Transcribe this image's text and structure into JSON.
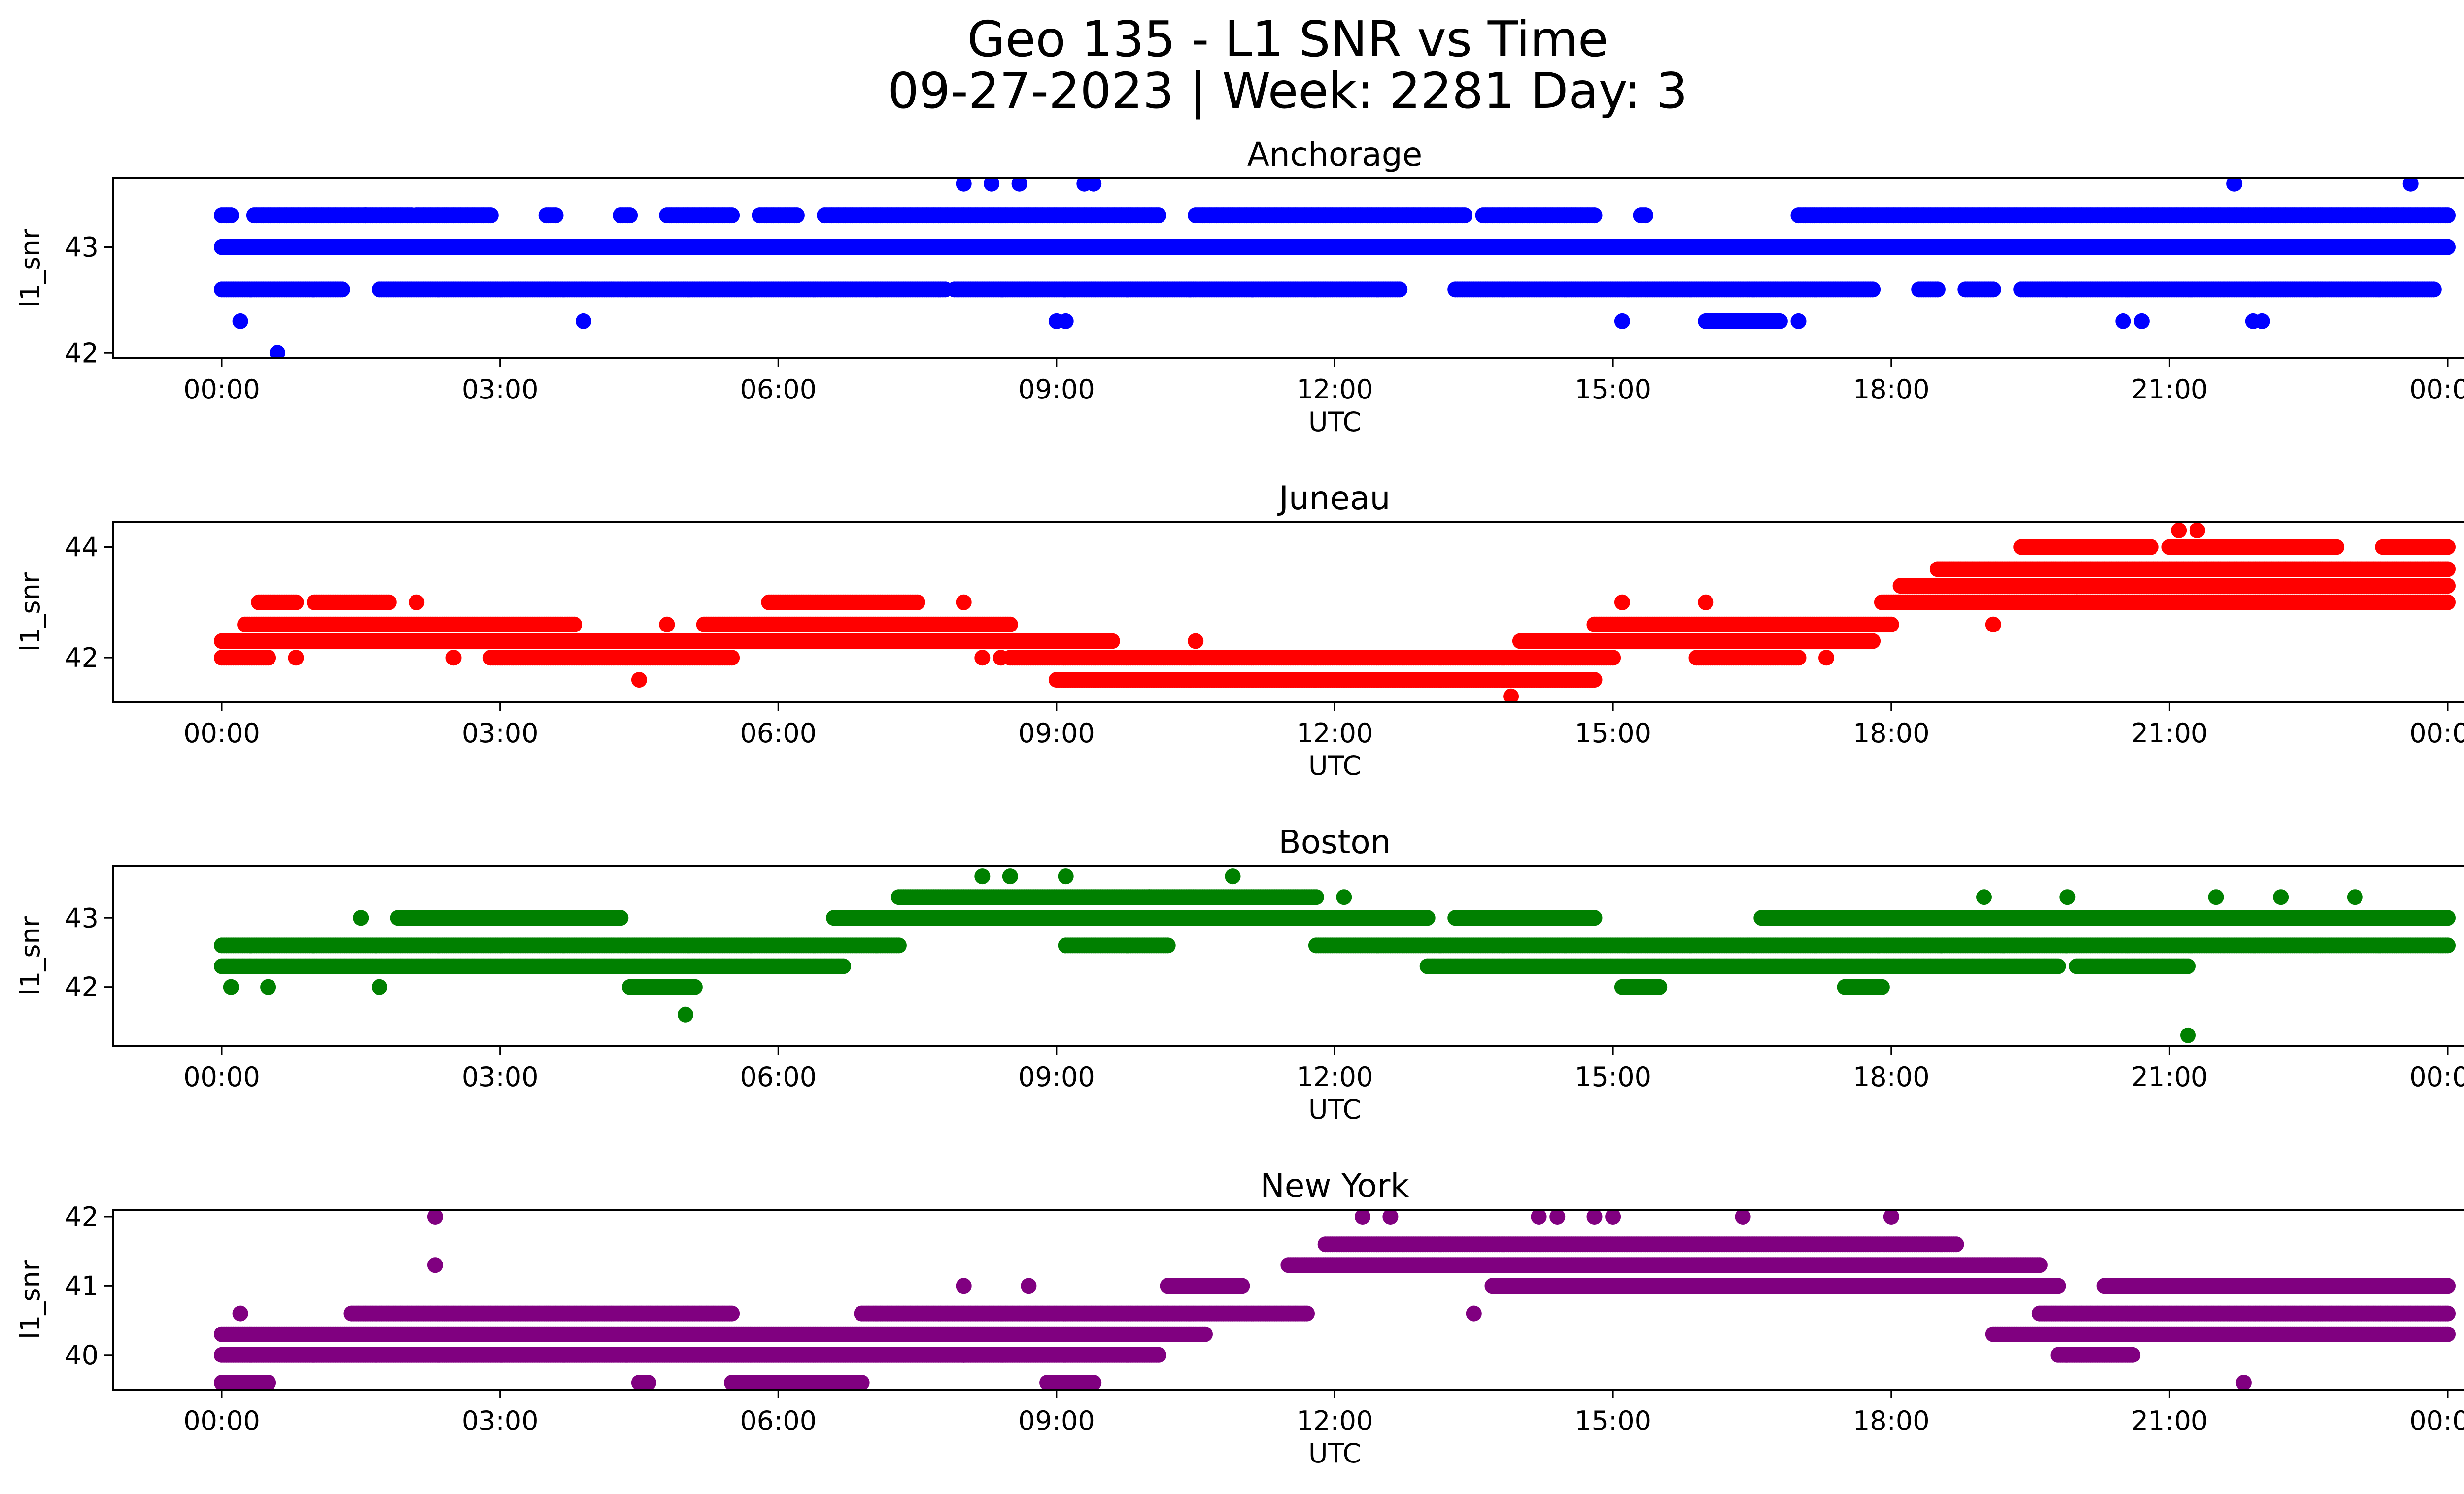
{
  "figure": {
    "title_line1": "Geo 135 - L1 SNR vs Time",
    "title_line2": "09-27-2023 | Week: 2281 Day: 3"
  },
  "chart_data": [
    {
      "type": "scatter",
      "title": "Anchorage",
      "color": "#0000ff",
      "xlabel": "UTC",
      "ylabel": "l1_snr",
      "x_unit": "hours UTC",
      "xlim": [
        "00:00",
        "00:00"
      ],
      "xticks": [
        "00:00",
        "03:00",
        "06:00",
        "09:00",
        "12:00",
        "15:00",
        "18:00",
        "21:00",
        "00:00"
      ],
      "ylim": [
        41.95,
        43.65
      ],
      "yticks": [
        42,
        43
      ],
      "bands": [
        {
          "y": 43.0,
          "segments": [
            [
              0.0,
              24.0
            ]
          ]
        },
        {
          "y": 43.3,
          "segments": [
            [
              0.0,
              0.1
            ],
            [
              0.35,
              1.55
            ],
            [
              1.55,
              2.05
            ],
            [
              2.1,
              2.9
            ],
            [
              3.5,
              3.6
            ],
            [
              4.3,
              4.4
            ],
            [
              4.8,
              5.5
            ],
            [
              5.8,
              6.2
            ],
            [
              6.5,
              10.1
            ],
            [
              10.5,
              13.4
            ],
            [
              13.6,
              14.8
            ],
            [
              15.3,
              15.35
            ],
            [
              17.0,
              24.0
            ]
          ]
        },
        {
          "y": 42.6,
          "segments": [
            [
              0.0,
              1.3
            ],
            [
              1.7,
              7.8
            ],
            [
              7.9,
              12.7
            ],
            [
              13.3,
              17.8
            ],
            [
              18.3,
              18.5
            ],
            [
              18.8,
              19.1
            ],
            [
              19.4,
              23.85
            ]
          ]
        },
        {
          "y": 42.3,
          "segments": [
            [
              16.0,
              16.8
            ]
          ]
        }
      ],
      "points": [
        [
          0.2,
          42.3
        ],
        [
          0.6,
          42.0
        ],
        [
          3.9,
          42.3
        ],
        [
          8.0,
          43.6
        ],
        [
          8.3,
          43.6
        ],
        [
          8.6,
          43.6
        ],
        [
          9.0,
          42.3
        ],
        [
          9.1,
          42.3
        ],
        [
          9.3,
          43.6
        ],
        [
          9.4,
          43.6
        ],
        [
          15.1,
          42.3
        ],
        [
          17.0,
          42.3
        ],
        [
          20.5,
          42.3
        ],
        [
          20.7,
          42.3
        ],
        [
          21.7,
          43.6
        ],
        [
          21.9,
          42.3
        ],
        [
          22.0,
          42.3
        ],
        [
          23.6,
          43.6
        ]
      ]
    },
    {
      "type": "scatter",
      "title": "Juneau",
      "color": "#ff0000",
      "xlabel": "UTC",
      "ylabel": "l1_snr",
      "x_unit": "hours UTC",
      "xlim": [
        "00:00",
        "00:00"
      ],
      "xticks": [
        "00:00",
        "03:00",
        "06:00",
        "09:00",
        "12:00",
        "15:00",
        "18:00",
        "21:00",
        "00:00"
      ],
      "ylim": [
        41.2,
        44.45
      ],
      "yticks": [
        42,
        44
      ],
      "bands": [
        {
          "y": 42.3,
          "segments": [
            [
              0.0,
              9.6
            ],
            [
              14.0,
              17.8
            ]
          ]
        },
        {
          "y": 42.0,
          "segments": [
            [
              0.0,
              0.5
            ],
            [
              2.9,
              5.5
            ],
            [
              8.5,
              15.0
            ],
            [
              15.9,
              17.0
            ]
          ]
        },
        {
          "y": 42.6,
          "segments": [
            [
              0.25,
              3.8
            ],
            [
              5.2,
              8.5
            ],
            [
              14.8,
              18.0
            ]
          ]
        },
        {
          "y": 43.0,
          "segments": [
            [
              0.4,
              0.8
            ],
            [
              1.0,
              1.8
            ],
            [
              5.9,
              7.5
            ],
            [
              17.9,
              24.0
            ]
          ]
        },
        {
          "y": 41.6,
          "segments": [
            [
              9.0,
              14.8
            ]
          ]
        },
        {
          "y": 43.3,
          "segments": [
            [
              18.1,
              24.0
            ]
          ]
        },
        {
          "y": 43.6,
          "segments": [
            [
              18.5,
              24.0
            ]
          ]
        },
        {
          "y": 44.0,
          "segments": [
            [
              19.4,
              20.8
            ],
            [
              21.0,
              22.8
            ],
            [
              23.3,
              24.0
            ]
          ]
        }
      ],
      "points": [
        [
          0.8,
          42.0
        ],
        [
          2.1,
          43.0
        ],
        [
          2.5,
          42.0
        ],
        [
          4.5,
          41.6
        ],
        [
          4.8,
          42.6
        ],
        [
          8.0,
          43.0
        ],
        [
          8.2,
          42.0
        ],
        [
          8.4,
          42.0
        ],
        [
          10.5,
          42.3
        ],
        [
          13.9,
          41.3
        ],
        [
          15.1,
          43.0
        ],
        [
          16.0,
          43.0
        ],
        [
          17.3,
          42.0
        ],
        [
          19.1,
          42.6
        ],
        [
          20.0,
          43.0
        ],
        [
          21.1,
          44.3
        ],
        [
          21.3,
          44.3
        ]
      ]
    },
    {
      "type": "scatter",
      "title": "Boston",
      "color": "#008000",
      "xlabel": "UTC",
      "ylabel": "l1_snr",
      "x_unit": "hours UTC",
      "xlim": [
        "00:00",
        "00:00"
      ],
      "xticks": [
        "00:00",
        "03:00",
        "06:00",
        "09:00",
        "12:00",
        "15:00",
        "18:00",
        "21:00",
        "00:00"
      ],
      "ylim": [
        41.15,
        43.75
      ],
      "yticks": [
        42,
        43
      ],
      "bands": [
        {
          "y": 42.6,
          "segments": [
            [
              0.0,
              7.3
            ],
            [
              9.1,
              10.2
            ],
            [
              11.8,
              24.0
            ]
          ]
        },
        {
          "y": 42.3,
          "segments": [
            [
              0.0,
              6.7
            ],
            [
              13.0,
              19.8
            ],
            [
              20.0,
              21.2
            ]
          ]
        },
        {
          "y": 43.0,
          "segments": [
            [
              1.9,
              4.3
            ],
            [
              6.6,
              13.0
            ],
            [
              13.3,
              14.8
            ],
            [
              16.6,
              24.0
            ]
          ]
        },
        {
          "y": 43.3,
          "segments": [
            [
              7.3,
              10.0
            ],
            [
              10.0,
              11.8
            ]
          ]
        },
        {
          "y": 42.0,
          "segments": [
            [
              4.4,
              5.1
            ],
            [
              15.1,
              15.5
            ],
            [
              17.5,
              17.9
            ]
          ]
        }
      ],
      "points": [
        [
          0.1,
          42.0
        ],
        [
          0.5,
          42.0
        ],
        [
          1.5,
          43.0
        ],
        [
          1.7,
          42.0
        ],
        [
          5.0,
          41.6
        ],
        [
          8.2,
          43.6
        ],
        [
          8.5,
          43.6
        ],
        [
          9.1,
          43.6
        ],
        [
          10.9,
          43.6
        ],
        [
          12.1,
          43.3
        ],
        [
          19.0,
          43.3
        ],
        [
          19.9,
          43.3
        ],
        [
          21.2,
          41.3
        ],
        [
          21.5,
          43.3
        ],
        [
          22.2,
          43.3
        ],
        [
          23.0,
          43.3
        ]
      ]
    },
    {
      "type": "scatter",
      "title": "New York",
      "color": "#800080",
      "xlabel": "UTC",
      "ylabel": "l1_snr",
      "x_unit": "hours UTC",
      "xlim": [
        "00:00",
        "00:00"
      ],
      "xticks": [
        "00:00",
        "03:00",
        "06:00",
        "09:00",
        "12:00",
        "15:00",
        "18:00",
        "21:00",
        "00:00"
      ],
      "ylim": [
        39.5,
        42.1
      ],
      "yticks": [
        40,
        41,
        42
      ],
      "bands": [
        {
          "y": 40.3,
          "segments": [
            [
              0.0,
              10.6
            ],
            [
              19.1,
              24.0
            ]
          ]
        },
        {
          "y": 40.0,
          "segments": [
            [
              0.0,
              8.0
            ],
            [
              8.0,
              10.1
            ],
            [
              19.8,
              20.6
            ]
          ]
        },
        {
          "y": 40.6,
          "segments": [
            [
              1.4,
              5.5
            ],
            [
              6.9,
              11.7
            ],
            [
              19.6,
              24.0
            ]
          ]
        },
        {
          "y": 41.0,
          "segments": [
            [
              10.2,
              11.0
            ],
            [
              13.7,
              19.8
            ],
            [
              20.3,
              24.0
            ]
          ]
        },
        {
          "y": 41.3,
          "segments": [
            [
              11.5,
              19.6
            ]
          ]
        },
        {
          "y": 41.6,
          "segments": [
            [
              11.9,
              18.7
            ]
          ]
        },
        {
          "y": 39.6,
          "segments": [
            [
              0.0,
              0.5
            ],
            [
              4.5,
              4.6
            ],
            [
              5.5,
              6.9
            ],
            [
              8.9,
              9.4
            ]
          ]
        }
      ],
      "points": [
        [
          0.2,
          40.6
        ],
        [
          2.3,
          42.0
        ],
        [
          2.3,
          41.3
        ],
        [
          8.0,
          41.0
        ],
        [
          8.7,
          41.0
        ],
        [
          12.3,
          42.0
        ],
        [
          12.6,
          42.0
        ],
        [
          13.5,
          40.6
        ],
        [
          14.2,
          42.0
        ],
        [
          14.4,
          42.0
        ],
        [
          14.8,
          42.0
        ],
        [
          15.0,
          42.0
        ],
        [
          16.4,
          42.0
        ],
        [
          18.0,
          42.0
        ],
        [
          21.8,
          39.6
        ]
      ]
    }
  ]
}
